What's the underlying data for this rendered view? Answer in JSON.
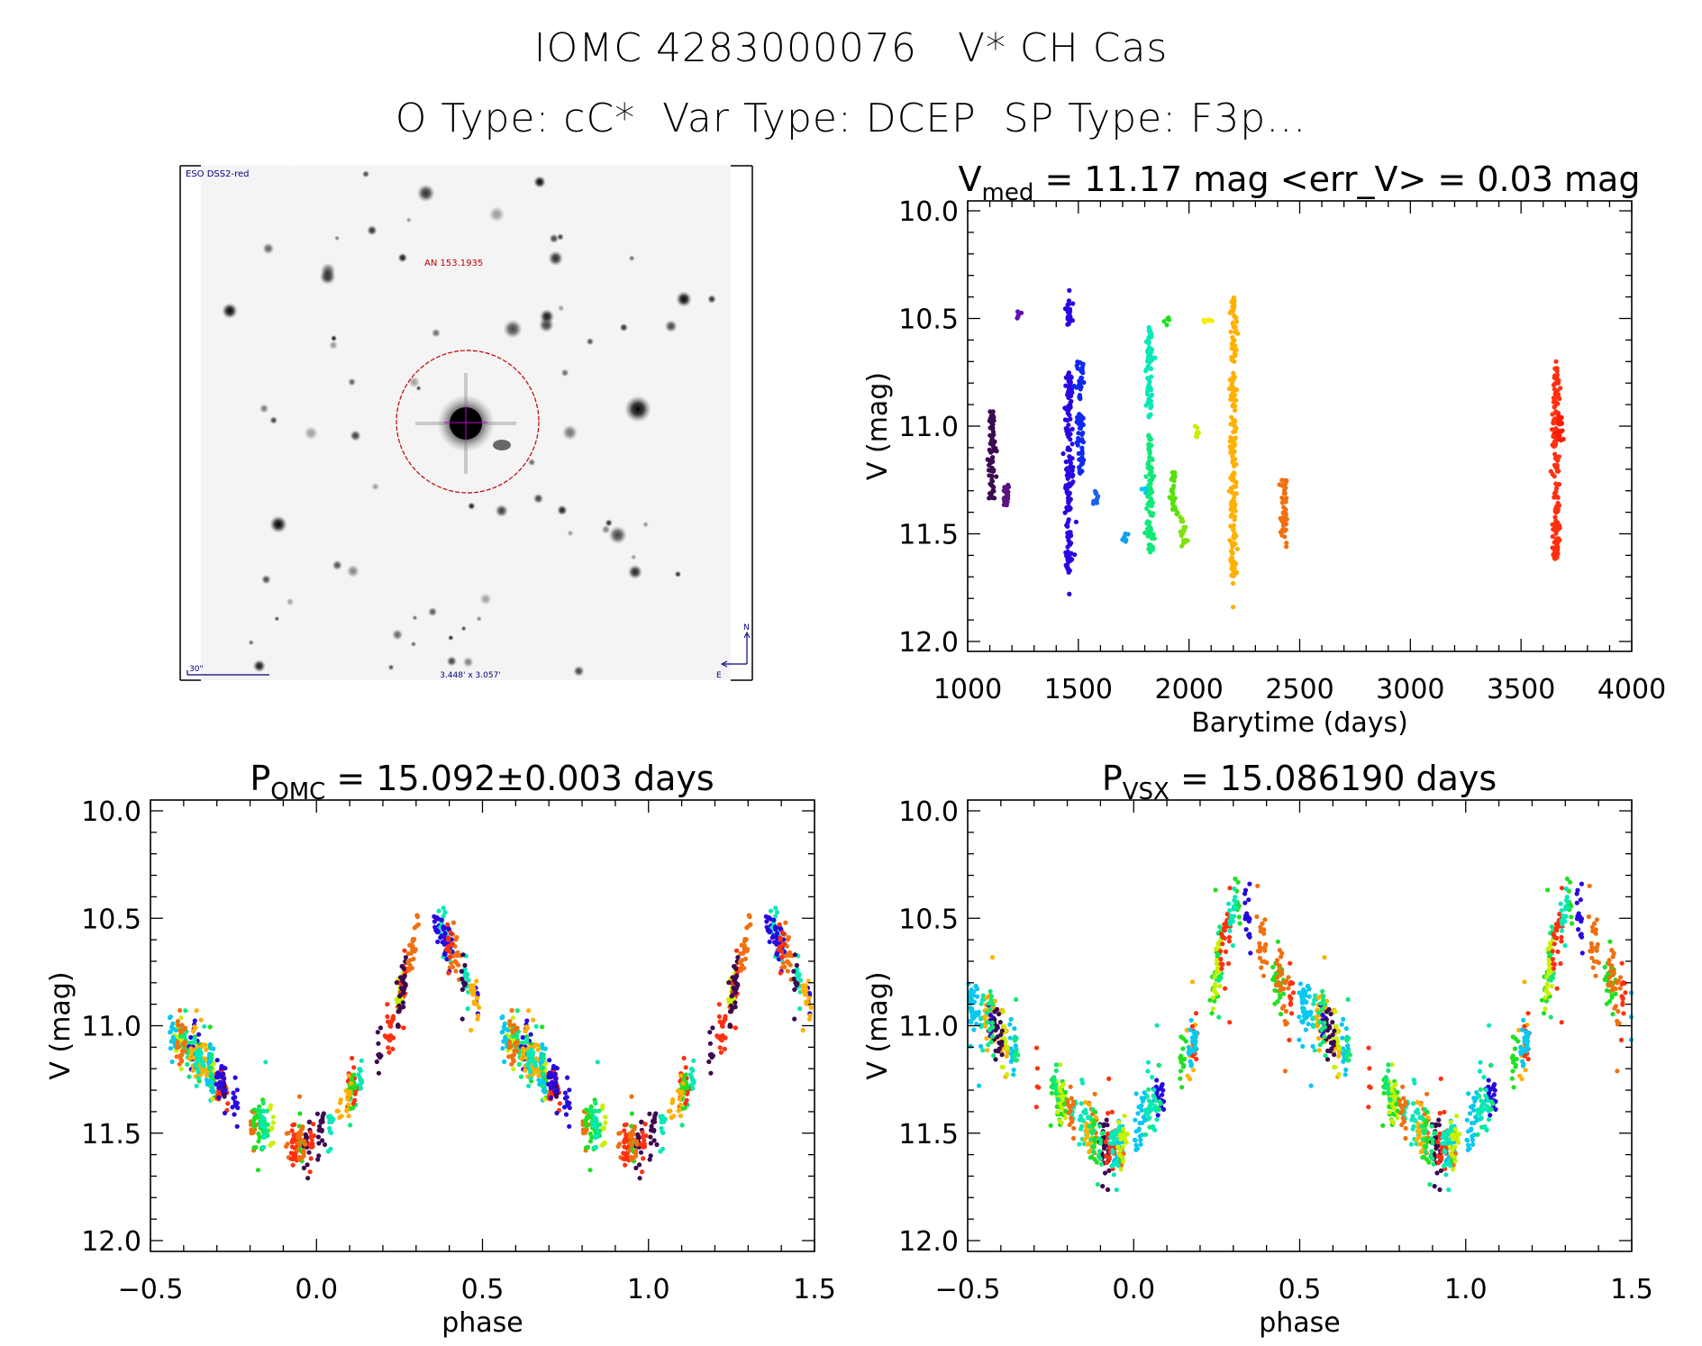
{
  "header": {
    "title_line1": "IOMC 4283000076   V* CH Cas",
    "title_line2": "O Type: cC*  Var Type: DCEP  SP Type: F3p..."
  },
  "finder_image": {
    "survey_label": "ESO DSS2-red",
    "object_label": "AN 153.1935",
    "scale_bar_label": "30\"",
    "field_size_label": "3.448' x 3.057'",
    "compass_north": "N",
    "compass_east": "E",
    "circle_color": "#c00000",
    "label_color": "#000080"
  },
  "chart_data": [
    {
      "id": "lightcurve",
      "type": "scatter",
      "title_main": "V",
      "title_sub": "med",
      "title_rest": " = 11.17 mag <err_V> = 0.03 mag",
      "xlabel": "Barytime (days)",
      "ylabel": "V (mag)",
      "xlim": [
        1000,
        4000
      ],
      "ylim": [
        10.0,
        12.0
      ],
      "y_inverted": true,
      "x_ticks": [
        1000,
        1500,
        2000,
        2500,
        3000,
        3500,
        4000
      ],
      "x_tick_labels": [
        "1000",
        "1500",
        "2000",
        "2500",
        "3000",
        "3500",
        "4000"
      ],
      "y_ticks": [
        10.0,
        10.5,
        11.0,
        11.5,
        12.0
      ],
      "y_tick_labels": [
        "10.0",
        "10.5",
        "11.0",
        "11.5",
        "12.0"
      ],
      "grid": false,
      "clusters": [
        {
          "day": 1110,
          "segments": [
            [
              10.93,
              11.35
            ]
          ],
          "color": "#3c0a50"
        },
        {
          "day": 1173,
          "segments": [
            [
              11.25,
              11.37
            ]
          ],
          "color": "#5a1480"
        },
        {
          "day": 1230,
          "segments": [
            [
              10.46,
              10.5
            ]
          ],
          "color": "#6010b0"
        },
        {
          "day": 1459,
          "segments": [
            [
              10.4,
              10.53
            ],
            [
              10.75,
              11.7
            ]
          ],
          "outliers": [
            10.37,
            11.78
          ],
          "color": "#2808e0"
        },
        {
          "day": 1508,
          "segments": [
            [
              10.7,
              10.88
            ],
            [
              10.94,
              11.22
            ]
          ],
          "color": "#1028f0"
        },
        {
          "day": 1579,
          "segments": [
            [
              11.3,
              11.37
            ]
          ],
          "color": "#1c60f0"
        },
        {
          "day": 1713,
          "segments": [
            [
              11.49,
              11.54
            ]
          ],
          "color": "#10a0f0"
        },
        {
          "day": 1803,
          "segments": [
            [
              11.28,
              11.32
            ]
          ],
          "color": "#08c8f0"
        },
        {
          "day": 1820,
          "segments": [
            [
              10.54,
              10.96
            ]
          ],
          "color": "#08e8b8"
        },
        {
          "day": 1824,
          "segments": [
            [
              11.04,
              11.6
            ]
          ],
          "color": "#10e878"
        },
        {
          "day": 1902,
          "segments": [
            [
              10.49,
              10.53
            ]
          ],
          "color": "#20e020"
        },
        {
          "day": 1929,
          "segments": [
            [
              11.21,
              11.41
            ]
          ],
          "color": "#58e010"
        },
        {
          "day": 1972,
          "segments": [
            [
              11.42,
              11.56
            ]
          ],
          "color": "#80e010"
        },
        {
          "day": 2036,
          "segments": [
            [
              11.0,
              11.05
            ]
          ],
          "color": "#c8f000"
        },
        {
          "day": 2085,
          "segments": [
            [
              10.48,
              10.52
            ]
          ],
          "color": "#f0f000"
        },
        {
          "day": 2199,
          "segments": [
            [
              10.4,
              10.7
            ],
            [
              10.75,
              11.7
            ]
          ],
          "outliers": [
            11.73,
            11.84
          ],
          "color": "#ffb000"
        },
        {
          "day": 2429,
          "segments": [
            [
              11.25,
              11.56
            ]
          ],
          "color": "#f07010"
        },
        {
          "day": 3658,
          "segments": [
            [
              10.72,
              11.62
            ]
          ],
          "outliers": [
            10.7
          ],
          "color": "#ff3010"
        },
        {
          "day": 3675,
          "segments": [
            [
              10.95,
              11.07
            ]
          ],
          "color": "#ff1a00"
        }
      ]
    },
    {
      "id": "phase-omc",
      "type": "scatter",
      "title_main": "P",
      "title_sub": "OMC",
      "title_rest": " = 15.092±0.003 days",
      "xlabel": "phase",
      "ylabel": "V (mag)",
      "xlim": [
        -0.5,
        1.5
      ],
      "ylim": [
        10.0,
        12.0
      ],
      "y_inverted": true,
      "x_ticks": [
        -0.5,
        0.0,
        0.5,
        1.0,
        1.5
      ],
      "x_tick_labels": [
        "−0.5",
        "0.0",
        "0.5",
        "1.0",
        "1.5"
      ],
      "y_ticks": [
        10.0,
        10.5,
        11.0,
        11.5,
        12.0
      ],
      "y_tick_labels": [
        "10.0",
        "10.5",
        "11.0",
        "11.5",
        "12.0"
      ],
      "grid": false,
      "template": [
        [
          0.0,
          11.52
        ],
        [
          0.05,
          11.42
        ],
        [
          0.1,
          11.32
        ],
        [
          0.15,
          11.22
        ],
        [
          0.2,
          11.1
        ],
        [
          0.24,
          10.95
        ],
        [
          0.27,
          10.75
        ],
        [
          0.3,
          10.55
        ],
        [
          0.33,
          10.45
        ],
        [
          0.36,
          10.5
        ],
        [
          0.4,
          10.62
        ],
        [
          0.45,
          10.78
        ],
        [
          0.5,
          10.92
        ],
        [
          0.55,
          11.0
        ],
        [
          0.6,
          11.08
        ],
        [
          0.65,
          11.16
        ],
        [
          0.7,
          11.24
        ],
        [
          0.75,
          11.32
        ],
        [
          0.8,
          11.4
        ],
        [
          0.85,
          11.48
        ],
        [
          0.9,
          11.54
        ],
        [
          0.95,
          11.55
        ],
        [
          1.0,
          11.52
        ]
      ],
      "scatter_mag": 0.05,
      "series_colors": [
        "#ffb000",
        "#ff3010",
        "#2808e0",
        "#10e878",
        "#08e8b8",
        "#3c0a50",
        "#f07010",
        "#08c8f0",
        "#20e020",
        "#c8f000"
      ],
      "n_points_per_cycle": 900
    },
    {
      "id": "phase-vsx",
      "type": "scatter",
      "title_main": "P",
      "title_sub": "VSX",
      "title_rest": " = 15.086190 days",
      "xlabel": "phase",
      "ylabel": "V (mag)",
      "xlim": [
        -0.5,
        1.5
      ],
      "ylim": [
        10.0,
        12.0
      ],
      "y_inverted": true,
      "x_ticks": [
        -0.5,
        0.0,
        0.5,
        1.0,
        1.5
      ],
      "x_tick_labels": [
        "−0.5",
        "0.0",
        "0.5",
        "1.0",
        "1.5"
      ],
      "y_ticks": [
        10.0,
        10.5,
        11.0,
        11.5,
        12.0
      ],
      "y_tick_labels": [
        "10.0",
        "10.5",
        "11.0",
        "11.5",
        "12.0"
      ],
      "grid": false,
      "template": [
        [
          0.0,
          11.5
        ],
        [
          0.05,
          11.38
        ],
        [
          0.1,
          11.28
        ],
        [
          0.15,
          11.18
        ],
        [
          0.2,
          11.05
        ],
        [
          0.23,
          10.88
        ],
        [
          0.26,
          10.68
        ],
        [
          0.29,
          10.5
        ],
        [
          0.31,
          10.44
        ],
        [
          0.34,
          10.48
        ],
        [
          0.38,
          10.62
        ],
        [
          0.42,
          10.75
        ],
        [
          0.47,
          10.85
        ],
        [
          0.52,
          10.92
        ],
        [
          0.58,
          11.0
        ],
        [
          0.63,
          11.1
        ],
        [
          0.68,
          11.18
        ],
        [
          0.73,
          11.26
        ],
        [
          0.78,
          11.34
        ],
        [
          0.83,
          11.43
        ],
        [
          0.88,
          11.52
        ],
        [
          0.93,
          11.57
        ],
        [
          0.97,
          11.55
        ],
        [
          1.0,
          11.5
        ]
      ],
      "scatter_mag": 0.06,
      "series_colors": [
        "#ffb000",
        "#ff3010",
        "#2808e0",
        "#10e878",
        "#08e8b8",
        "#3c0a50",
        "#f07010",
        "#08c8f0",
        "#20e020",
        "#c8f000"
      ],
      "n_points_per_cycle": 900
    }
  ]
}
